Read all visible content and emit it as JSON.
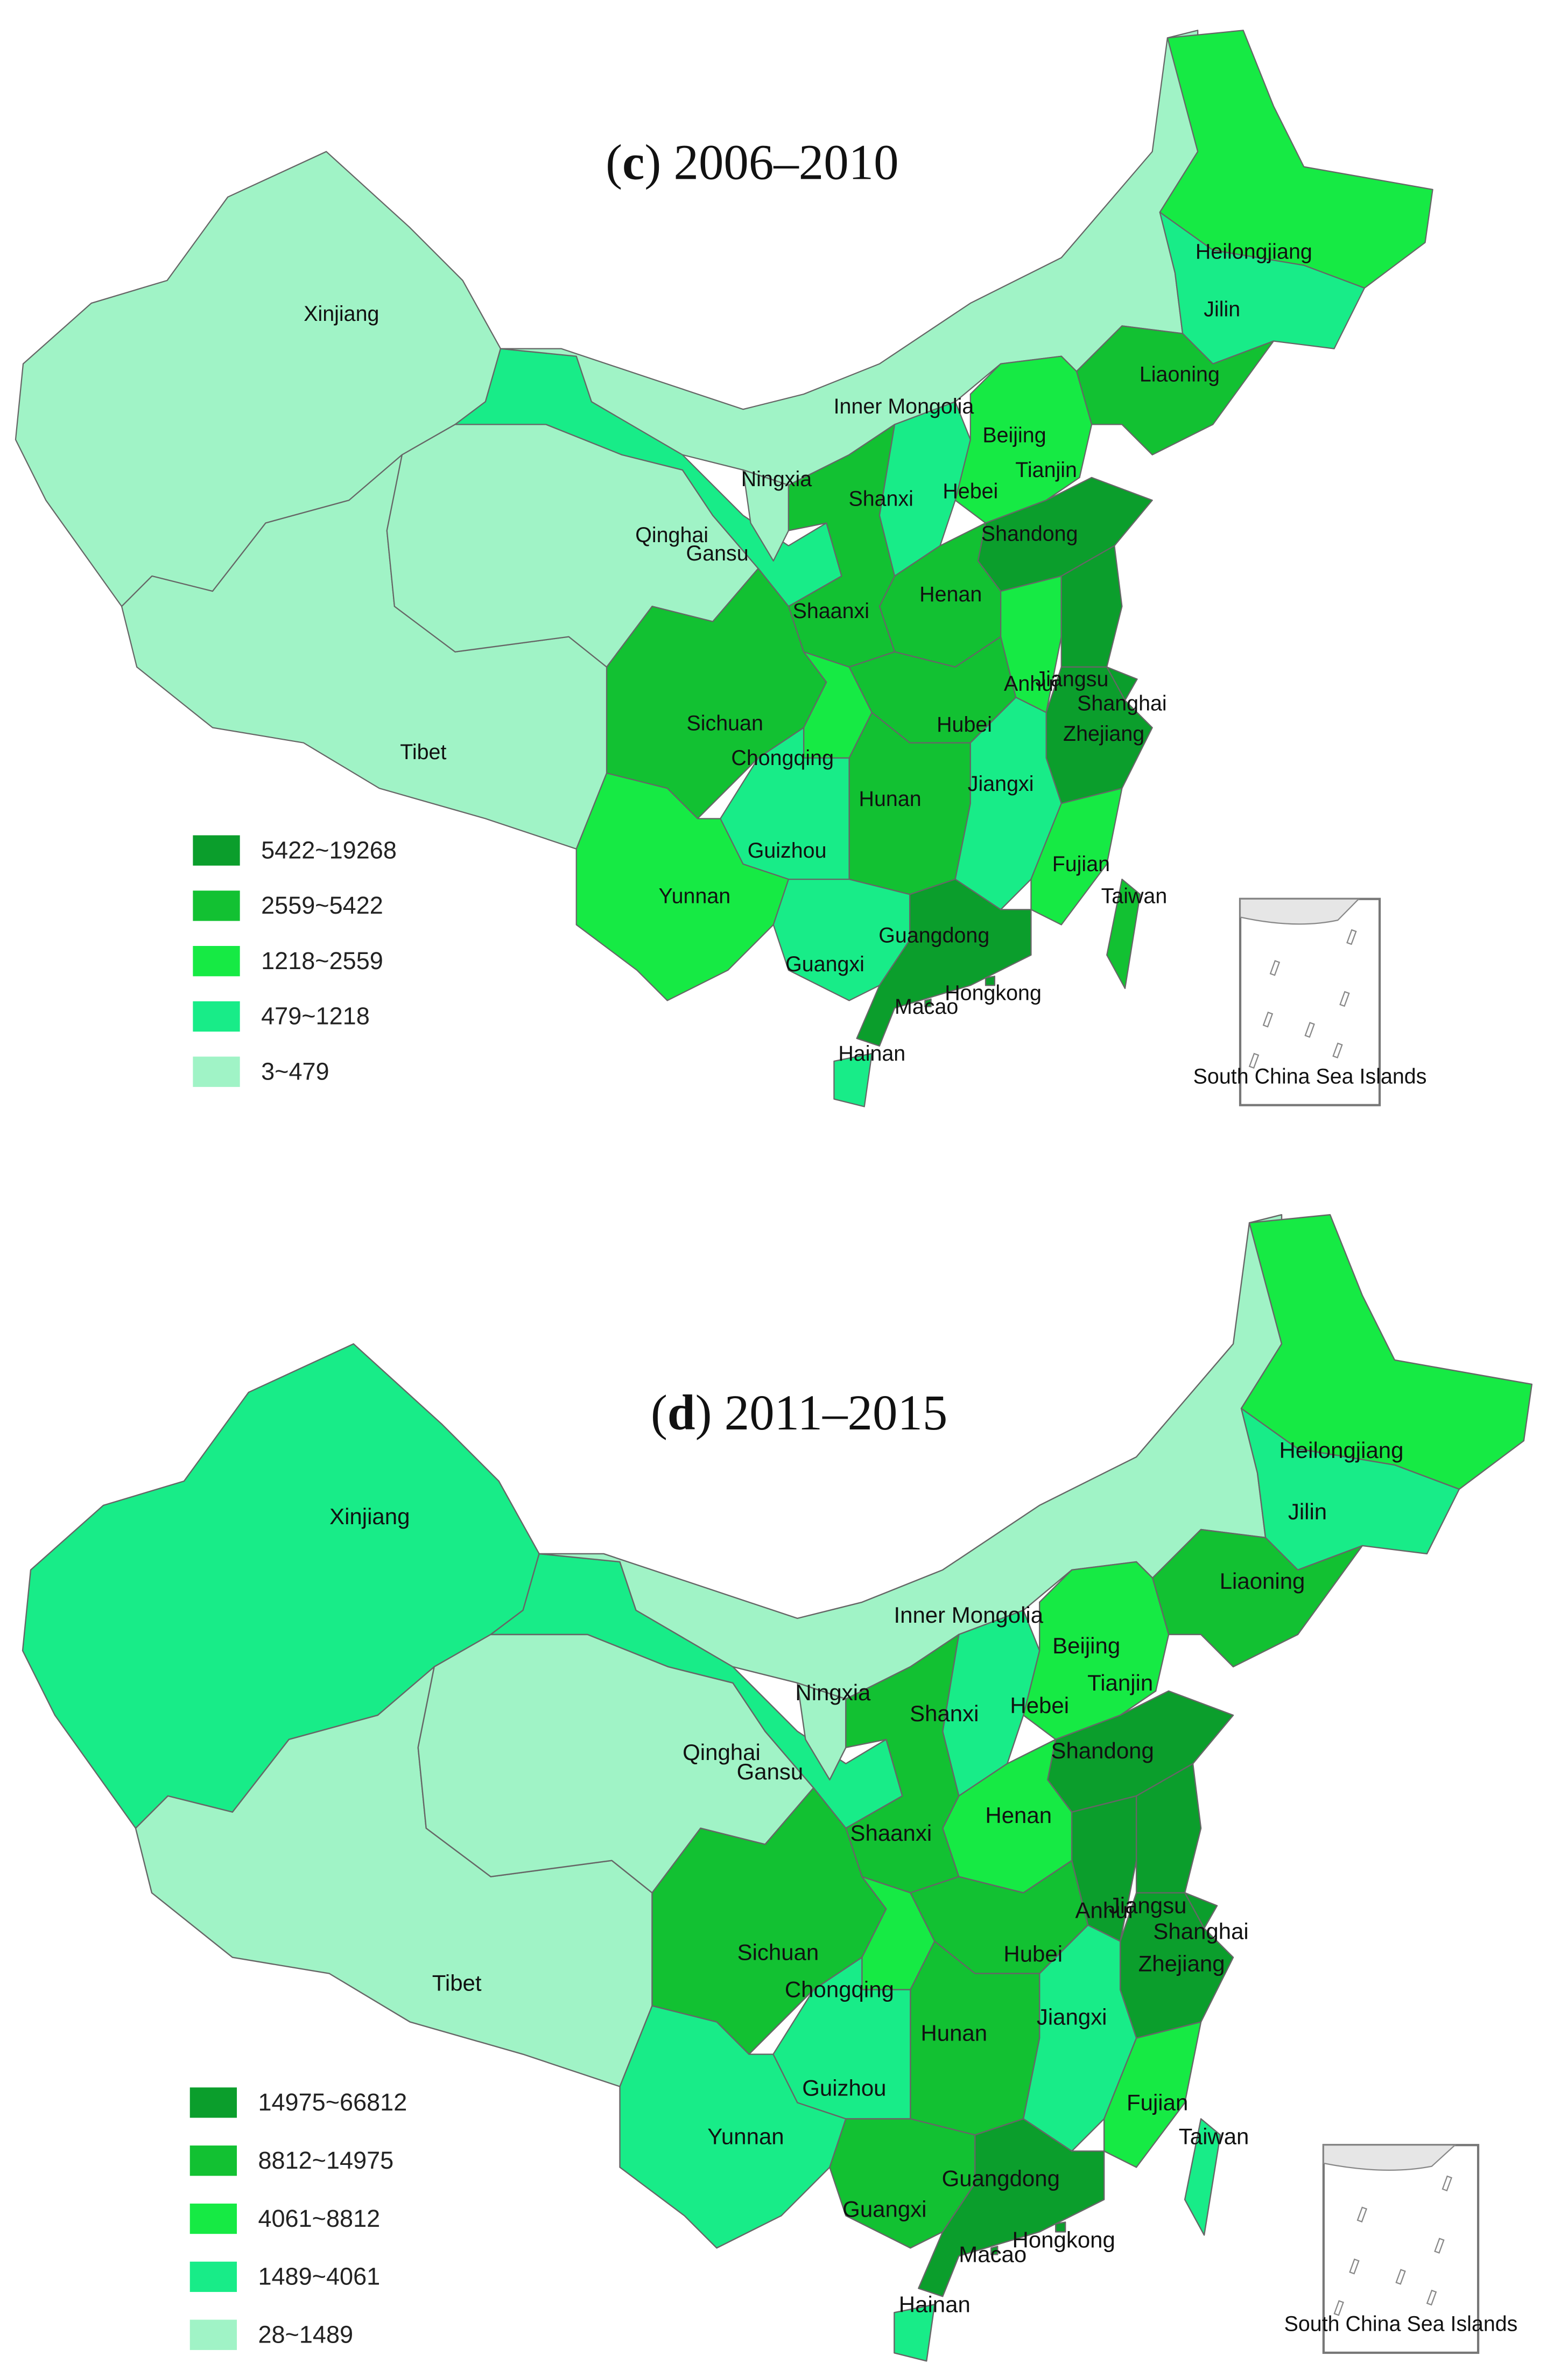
{
  "panels": [
    {
      "title": {
        "open": "(",
        "letter": "c",
        "rest": ") 2006–2010"
      },
      "legend": [
        {
          "label": "5422~19268",
          "color": "#0b9e2c"
        },
        {
          "label": "2559~5422",
          "color": "#12c132"
        },
        {
          "label": "1218~2559",
          "color": "#16ea44"
        },
        {
          "label": "479~1218",
          "color": "#18ec88"
        },
        {
          "label": "3~479",
          "color": "#a0f3c6"
        }
      ],
      "provinces": [
        {
          "name": "Xinjiang",
          "class": 4
        },
        {
          "name": "Tibet",
          "class": 4
        },
        {
          "name": "Qinghai",
          "class": 4
        },
        {
          "name": "Gansu",
          "class": 3
        },
        {
          "name": "Inner Mongolia",
          "class": 4
        },
        {
          "name": "Ningxia",
          "class": 4
        },
        {
          "name": "Heilongjiang",
          "class": 2
        },
        {
          "name": "Jilin",
          "class": 3
        },
        {
          "name": "Liaoning",
          "class": 1
        },
        {
          "name": "Beijing",
          "class": 0
        },
        {
          "name": "Tianjin",
          "class": 2
        },
        {
          "name": "Hebei",
          "class": 2
        },
        {
          "name": "Shanxi",
          "class": 3
        },
        {
          "name": "Shandong",
          "class": 0
        },
        {
          "name": "Henan",
          "class": 1
        },
        {
          "name": "Shaanxi",
          "class": 1
        },
        {
          "name": "Sichuan",
          "class": 1
        },
        {
          "name": "Chongqing",
          "class": 2
        },
        {
          "name": "Hubei",
          "class": 1
        },
        {
          "name": "Anhui",
          "class": 2
        },
        {
          "name": "Jiangsu",
          "class": 0
        },
        {
          "name": "Shanghai",
          "class": 0
        },
        {
          "name": "Zhejiang",
          "class": 0
        },
        {
          "name": "Hunan",
          "class": 1
        },
        {
          "name": "Jiangxi",
          "class": 3
        },
        {
          "name": "Fujian",
          "class": 2
        },
        {
          "name": "Guizhou",
          "class": 3
        },
        {
          "name": "Yunnan",
          "class": 2
        },
        {
          "name": "Guangxi",
          "class": 3
        },
        {
          "name": "Guangdong",
          "class": 0
        },
        {
          "name": "Taiwan",
          "class": 1
        },
        {
          "name": "Hainan",
          "class": 3
        },
        {
          "name": "Hongkong",
          "class": 0
        },
        {
          "name": "Macao",
          "class": 0
        }
      ],
      "inset_label": "South China Sea Islands"
    },
    {
      "title": {
        "open": "(",
        "letter": "d",
        "rest": ") 2011–2015"
      },
      "legend": [
        {
          "label": "14975~66812",
          "color": "#0b9e2c"
        },
        {
          "label": "8812~14975",
          "color": "#12c132"
        },
        {
          "label": "4061~8812",
          "color": "#16ea44"
        },
        {
          "label": "1489~4061",
          "color": "#18ec88"
        },
        {
          "label": "28~1489",
          "color": "#a0f3c6"
        }
      ],
      "provinces": [
        {
          "name": "Xinjiang",
          "class": 3
        },
        {
          "name": "Tibet",
          "class": 4
        },
        {
          "name": "Qinghai",
          "class": 4
        },
        {
          "name": "Gansu",
          "class": 3
        },
        {
          "name": "Inner Mongolia",
          "class": 4
        },
        {
          "name": "Ningxia",
          "class": 4
        },
        {
          "name": "Heilongjiang",
          "class": 2
        },
        {
          "name": "Jilin",
          "class": 3
        },
        {
          "name": "Liaoning",
          "class": 1
        },
        {
          "name": "Beijing",
          "class": 0
        },
        {
          "name": "Tianjin",
          "class": 2
        },
        {
          "name": "Hebei",
          "class": 2
        },
        {
          "name": "Shanxi",
          "class": 3
        },
        {
          "name": "Shandong",
          "class": 0
        },
        {
          "name": "Henan",
          "class": 2
        },
        {
          "name": "Shaanxi",
          "class": 1
        },
        {
          "name": "Sichuan",
          "class": 1
        },
        {
          "name": "Chongqing",
          "class": 2
        },
        {
          "name": "Hubei",
          "class": 1
        },
        {
          "name": "Anhui",
          "class": 0
        },
        {
          "name": "Jiangsu",
          "class": 0
        },
        {
          "name": "Shanghai",
          "class": 0
        },
        {
          "name": "Zhejiang",
          "class": 0
        },
        {
          "name": "Hunan",
          "class": 1
        },
        {
          "name": "Jiangxi",
          "class": 3
        },
        {
          "name": "Fujian",
          "class": 2
        },
        {
          "name": "Guizhou",
          "class": 3
        },
        {
          "name": "Yunnan",
          "class": 3
        },
        {
          "name": "Guangxi",
          "class": 1
        },
        {
          "name": "Guangdong",
          "class": 0
        },
        {
          "name": "Taiwan",
          "class": 3
        },
        {
          "name": "Hainan",
          "class": 3
        },
        {
          "name": "Hongkong",
          "class": 0
        },
        {
          "name": "Macao",
          "class": 0
        }
      ],
      "inset_label": "South China Sea Islands"
    }
  ]
}
